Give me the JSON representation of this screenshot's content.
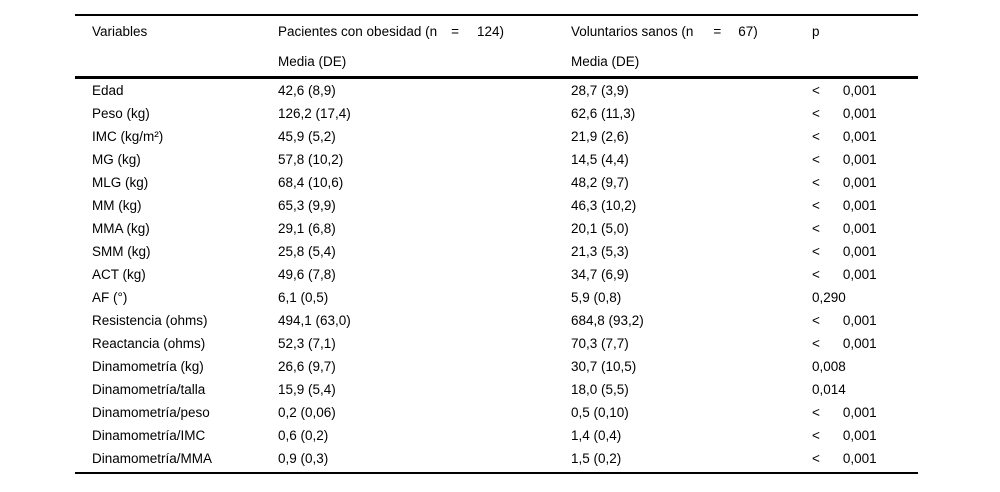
{
  "colors": {
    "text": "#000000",
    "background": "#ffffff",
    "rule": "#000000"
  },
  "table": {
    "headers": {
      "variables": "Variables",
      "group1": {
        "text": "Pacientes con obesidad (n",
        "eq": "=",
        "n": "124)"
      },
      "group2": {
        "text": "Voluntarios sanos (n",
        "eq": "=",
        "n": "67)"
      },
      "p": "p",
      "group1_sub": "Media (DE)",
      "group2_sub": "Media (DE)"
    },
    "rows": [
      {
        "variable": "Edad",
        "obese": "42,6 (8,9)",
        "healthy": "28,7 (3,9)",
        "p_lt": "<",
        "p": "0,001"
      },
      {
        "variable": "Peso (kg)",
        "obese": "126,2 (17,4)",
        "healthy": "62,6 (11,3)",
        "p_lt": "<",
        "p": "0,001"
      },
      {
        "variable": "IMC (kg/m²)",
        "obese": "45,9 (5,2)",
        "healthy": "21,9 (2,6)",
        "p_lt": "<",
        "p": "0,001"
      },
      {
        "variable": "MG (kg)",
        "obese": "57,8 (10,2)",
        "healthy": "14,5 (4,4)",
        "p_lt": "<",
        "p": "0,001"
      },
      {
        "variable": "MLG (kg)",
        "obese": "68,4 (10,6)",
        "healthy": "48,2 (9,7)",
        "p_lt": "<",
        "p": "0,001"
      },
      {
        "variable": "MM (kg)",
        "obese": "65,3 (9,9)",
        "healthy": "46,3 (10,2)",
        "p_lt": "<",
        "p": "0,001"
      },
      {
        "variable": "MMA (kg)",
        "obese": "29,1 (6,8)",
        "healthy": "20,1 (5,0)",
        "p_lt": "<",
        "p": "0,001"
      },
      {
        "variable": "SMM (kg)",
        "obese": "25,8 (5,4)",
        "healthy": "21,3 (5,3)",
        "p_lt": "<",
        "p": "0,001"
      },
      {
        "variable": "ACT (kg)",
        "obese": "49,6 (7,8)",
        "healthy": "34,7 (6,9)",
        "p_lt": "<",
        "p": "0,001"
      },
      {
        "variable": "AF (°)",
        "obese": "6,1 (0,5)",
        "healthy": "5,9 (0,8)",
        "p_lt": "",
        "p": "0,290"
      },
      {
        "variable": "Resistencia (ohms)",
        "obese": "494,1 (63,0)",
        "healthy": "684,8 (93,2)",
        "p_lt": "<",
        "p": "0,001"
      },
      {
        "variable": "Reactancia (ohms)",
        "obese": "52,3 (7,1)",
        "healthy": "70,3 (7,7)",
        "p_lt": "<",
        "p": "0,001"
      },
      {
        "variable": "Dinamometría (kg)",
        "obese": "26,6 (9,7)",
        "healthy": "30,7 (10,5)",
        "p_lt": "",
        "p": "0,008"
      },
      {
        "variable": "Dinamometría/talla",
        "obese": "15,9 (5,4)",
        "healthy": "18,0 (5,5)",
        "p_lt": "",
        "p": "0,014"
      },
      {
        "variable": "Dinamometría/peso",
        "obese": "0,2 (0,06)",
        "healthy": "0,5 (0,10)",
        "p_lt": "<",
        "p": "0,001"
      },
      {
        "variable": "Dinamometría/IMC",
        "obese": "0,6 (0,2)",
        "healthy": "1,4 (0,4)",
        "p_lt": "<",
        "p": "0,001"
      },
      {
        "variable": "Dinamometría/MMA",
        "obese": "0,9 (0,3)",
        "healthy": "1,5 (0,2)",
        "p_lt": "<",
        "p": "0,001"
      }
    ]
  }
}
